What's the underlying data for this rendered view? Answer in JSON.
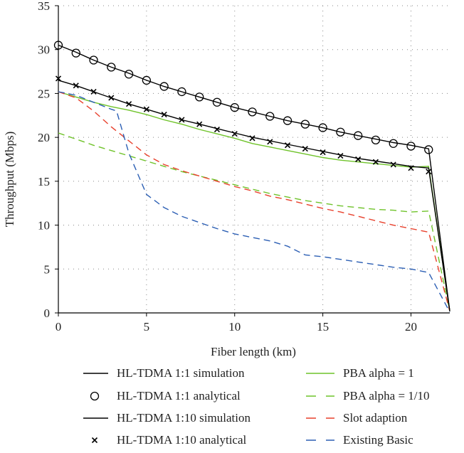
{
  "chart_data": {
    "type": "line",
    "xlabel": "Fiber length (km)",
    "ylabel": "Throughput (Mbps)",
    "xlim": [
      0,
      22.2
    ],
    "ylim": [
      0,
      35
    ],
    "xticks": [
      "0",
      "5",
      "10",
      "15",
      "20"
    ],
    "yticks": [
      "0",
      "5",
      "10",
      "15",
      "20",
      "25",
      "30",
      "35"
    ],
    "grid": "dotted",
    "legend_position": "bottom",
    "series": [
      {
        "name": "HL-TDMA 1:1 simulation",
        "color": "#000000",
        "style": "solid",
        "x": [
          0,
          1,
          2,
          3,
          4,
          5,
          6,
          7,
          8,
          9,
          10,
          11,
          12,
          13,
          14,
          15,
          16,
          17,
          18,
          19,
          20,
          21,
          22.2
        ],
        "y": [
          30.5,
          29.7,
          28.8,
          28.0,
          27.3,
          26.5,
          25.8,
          25.2,
          24.6,
          24.0,
          23.4,
          22.9,
          22.4,
          21.9,
          21.5,
          21.1,
          20.6,
          20.2,
          19.8,
          19.4,
          19.1,
          18.7,
          0.2
        ]
      },
      {
        "name": "HL-TDMA 1:1 analytical",
        "color": "#000000",
        "marker": "circle",
        "x": [
          0,
          1,
          2,
          3,
          4,
          5,
          6,
          7,
          8,
          9,
          10,
          11,
          12,
          13,
          14,
          15,
          16,
          17,
          18,
          19,
          20,
          21
        ],
        "y": [
          30.5,
          29.6,
          28.8,
          28.0,
          27.2,
          26.5,
          25.8,
          25.2,
          24.6,
          24.0,
          23.4,
          22.9,
          22.4,
          21.9,
          21.5,
          21.1,
          20.6,
          20.2,
          19.7,
          19.3,
          19.0,
          18.6
        ]
      },
      {
        "name": "HL-TDMA 1:10 simulation",
        "color": "#000000",
        "style": "solid",
        "x": [
          0,
          1,
          2,
          3,
          4,
          5,
          6,
          7,
          8,
          9,
          10,
          11,
          12,
          13,
          14,
          15,
          16,
          17,
          18,
          19,
          20,
          21,
          22.2
        ],
        "y": [
          26.5,
          25.9,
          25.2,
          24.5,
          23.8,
          23.2,
          22.6,
          22.0,
          21.5,
          21.0,
          20.5,
          20.0,
          19.6,
          19.2,
          18.8,
          18.4,
          18.0,
          17.6,
          17.3,
          17.0,
          16.7,
          16.5,
          0.2
        ]
      },
      {
        "name": "HL-TDMA 1:10 analytical",
        "color": "#000000",
        "marker": "x",
        "x": [
          0,
          1,
          2,
          3,
          4,
          5,
          6,
          7,
          8,
          9,
          10,
          11,
          12,
          13,
          14,
          15,
          16,
          17,
          18,
          19,
          20,
          21
        ],
        "y": [
          26.7,
          25.9,
          25.2,
          24.5,
          23.8,
          23.2,
          22.6,
          22.0,
          21.5,
          20.9,
          20.4,
          19.9,
          19.5,
          19.1,
          18.7,
          18.3,
          17.9,
          17.5,
          17.2,
          16.9,
          16.5,
          16.1
        ]
      },
      {
        "name": "PBA alpha = 1",
        "color": "#6fc32a",
        "style": "solid",
        "x": [
          0,
          1,
          2,
          3,
          4,
          5,
          6,
          7,
          8,
          9,
          10,
          11,
          12,
          13,
          14,
          15,
          16,
          17,
          18,
          19,
          20,
          21,
          22.2
        ],
        "y": [
          25.2,
          24.6,
          24.0,
          23.5,
          23.1,
          22.6,
          22.0,
          21.5,
          20.9,
          20.4,
          19.9,
          19.3,
          18.9,
          18.5,
          18.1,
          17.7,
          17.4,
          17.2,
          17.0,
          16.8,
          16.6,
          16.7,
          0.2
        ]
      },
      {
        "name": "PBA alpha = 1/10",
        "color": "#6fc32a",
        "style": "dashed",
        "x": [
          0,
          1,
          2,
          3,
          4,
          5,
          6,
          7,
          8,
          9,
          10,
          11,
          12,
          13,
          14,
          15,
          16,
          17,
          18,
          19,
          20,
          21,
          22.2
        ],
        "y": [
          20.5,
          19.8,
          19.1,
          18.5,
          17.9,
          17.3,
          16.7,
          16.1,
          15.6,
          15.1,
          14.6,
          14.1,
          13.6,
          13.2,
          12.8,
          12.5,
          12.2,
          12.0,
          11.8,
          11.7,
          11.5,
          11.6,
          0.2
        ]
      },
      {
        "name": "Slot adaption",
        "color": "#e8402c",
        "style": "dashed",
        "x": [
          0,
          1,
          2,
          3,
          4,
          5,
          6,
          7,
          8,
          9,
          10,
          11,
          12,
          13,
          14,
          15,
          16,
          17,
          18,
          19,
          20,
          21,
          22.2
        ],
        "y": [
          25.2,
          24.5,
          23.0,
          21.2,
          19.6,
          18.0,
          16.9,
          16.2,
          15.6,
          15.0,
          14.4,
          13.9,
          13.3,
          12.9,
          12.4,
          11.9,
          11.5,
          11.0,
          10.5,
          10.0,
          9.6,
          9.2,
          0.2
        ]
      },
      {
        "name": "Existing Basic",
        "color": "#2c5fb4",
        "style": "dashed",
        "x": [
          0,
          1,
          2,
          3,
          3.3,
          4,
          5,
          6,
          7,
          8,
          9,
          10,
          11,
          12,
          13,
          14,
          15,
          16,
          17,
          18,
          19,
          20,
          21,
          22.2
        ],
        "y": [
          25.2,
          24.8,
          24.0,
          23.2,
          23.0,
          18.2,
          13.5,
          12.0,
          11.0,
          10.3,
          9.6,
          9.0,
          8.6,
          8.2,
          7.6,
          6.6,
          6.4,
          6.1,
          5.8,
          5.5,
          5.2,
          5.0,
          4.6,
          0.1
        ]
      }
    ]
  }
}
